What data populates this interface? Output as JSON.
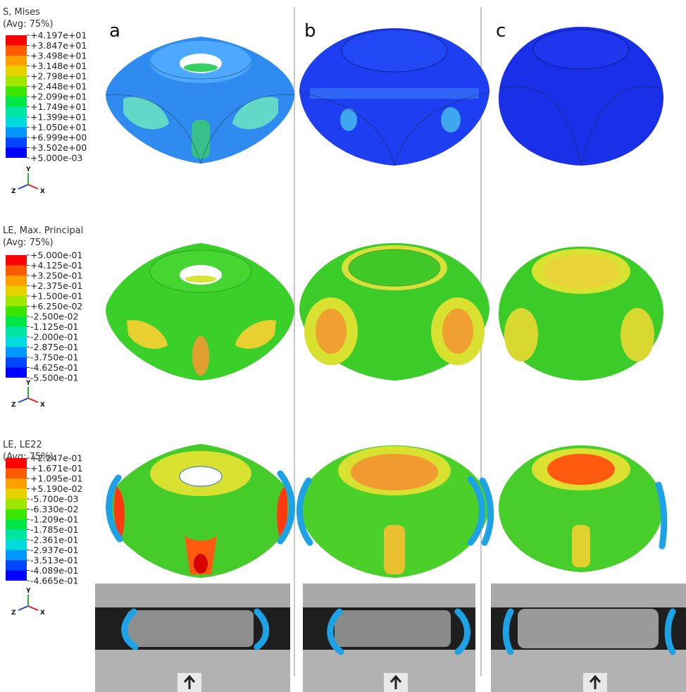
{
  "panels": [
    "a",
    "b",
    "c"
  ],
  "legends": [
    {
      "title": [
        "S, Mises",
        "(Avg: 75%)"
      ],
      "labels": [
        "+4.197e+01",
        "+3.847e+01",
        "+3.498e+01",
        "+3.148e+01",
        "+2.798e+01",
        "+2.448e+01",
        "+2.099e+01",
        "+1.749e+01",
        "+1.399e+01",
        "+1.050e+01",
        "+6.999e+00",
        "+3.502e+00",
        "+5.000e-03"
      ],
      "triad": [
        "Y",
        "Z",
        "X"
      ]
    },
    {
      "title": [
        "LE, Max. Principal",
        "(Avg: 75%)"
      ],
      "labels": [
        "+5.000e-01",
        "+4.125e-01",
        "+3.250e-01",
        "+2.375e-01",
        "+1.500e-01",
        "+6.250e-02",
        "-2.500e-02",
        "-1.125e-01",
        "-2.000e-01",
        "-2.875e-01",
        "-3.750e-01",
        "-4.625e-01",
        "-5.500e-01"
      ],
      "triad": [
        "Y",
        "Z",
        "X"
      ]
    },
    {
      "title": [
        "LE, LE22",
        "(Avg: 75%)"
      ],
      "labels": [
        "+2.247e-01",
        "+1.671e-01",
        "+1.095e-01",
        "+5.190e-02",
        "-5.700e-03",
        "-6.330e-02",
        "-1.209e-01",
        "-1.785e-01",
        "-2.361e-01",
        "-2.937e-01",
        "-3.513e-01",
        "-4.089e-01",
        "-4.665e-01"
      ],
      "triad": [
        "Y",
        "Z",
        "X"
      ]
    }
  ]
}
